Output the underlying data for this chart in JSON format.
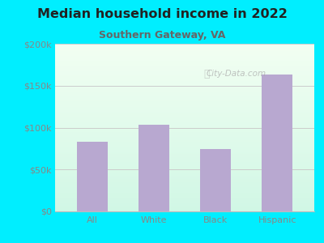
{
  "title": "Median household income in 2022",
  "subtitle": "Southern Gateway, VA",
  "categories": [
    "All",
    "White",
    "Black",
    "Hispanic"
  ],
  "values": [
    83000,
    103000,
    74000,
    163000
  ],
  "bar_color": "#b8a8d0",
  "background_outer": "#00eeff",
  "ylim": [
    0,
    200000
  ],
  "yticks": [
    0,
    50000,
    100000,
    150000,
    200000
  ],
  "ytick_labels": [
    "$0",
    "$50k",
    "$100k",
    "$150k",
    "$200k"
  ],
  "title_fontsize": 11.5,
  "subtitle_fontsize": 9,
  "tick_fontsize": 8,
  "tick_color": "#888888",
  "title_color": "#222222",
  "subtitle_color": "#666666",
  "watermark_text": "City-Data.com",
  "grid_color": "#cccccc"
}
